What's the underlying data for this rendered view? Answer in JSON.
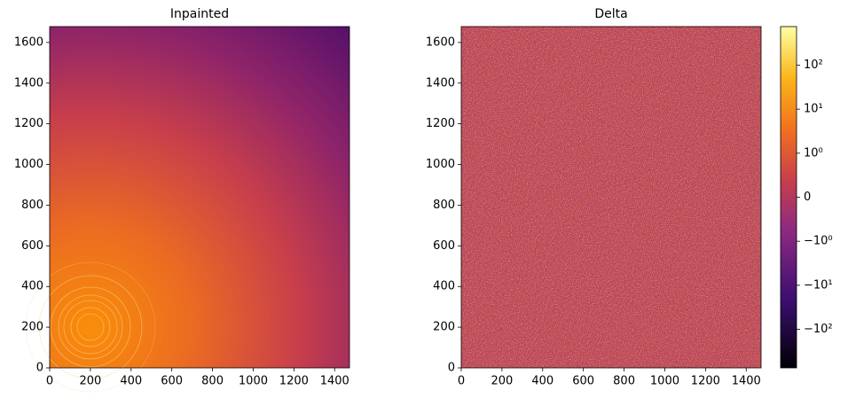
{
  "chart_data": [
    {
      "type": "image",
      "title": "Inpainted",
      "xlim": [
        0,
        1473
      ],
      "ylim": [
        0,
        1678
      ],
      "xticks": [
        0,
        200,
        400,
        600,
        800,
        1000,
        1200,
        1400
      ],
      "yticks": [
        0,
        200,
        400,
        600,
        800,
        1000,
        1200,
        1400,
        1600
      ]
    },
    {
      "type": "image",
      "title": "Delta",
      "xlim": [
        0,
        1473
      ],
      "ylim": [
        0,
        1678
      ],
      "xticks": [
        0,
        200,
        400,
        600,
        800,
        1000,
        1200,
        1400
      ],
      "yticks": [
        0,
        200,
        400,
        600,
        800,
        1000,
        1200,
        1400,
        1600
      ],
      "colorbar": {
        "scale": "symlog",
        "lim": [
          -750,
          750
        ],
        "ticks": [
          {
            "value": 100,
            "label": "10²"
          },
          {
            "value": 10,
            "label": "10¹"
          },
          {
            "value": 1,
            "label": "10⁰"
          },
          0,
          {
            "value": -1,
            "label": "−10⁰"
          },
          {
            "value": -10,
            "label": "−10¹"
          },
          {
            "value": -100,
            "label": "−10²"
          }
        ]
      }
    }
  ]
}
